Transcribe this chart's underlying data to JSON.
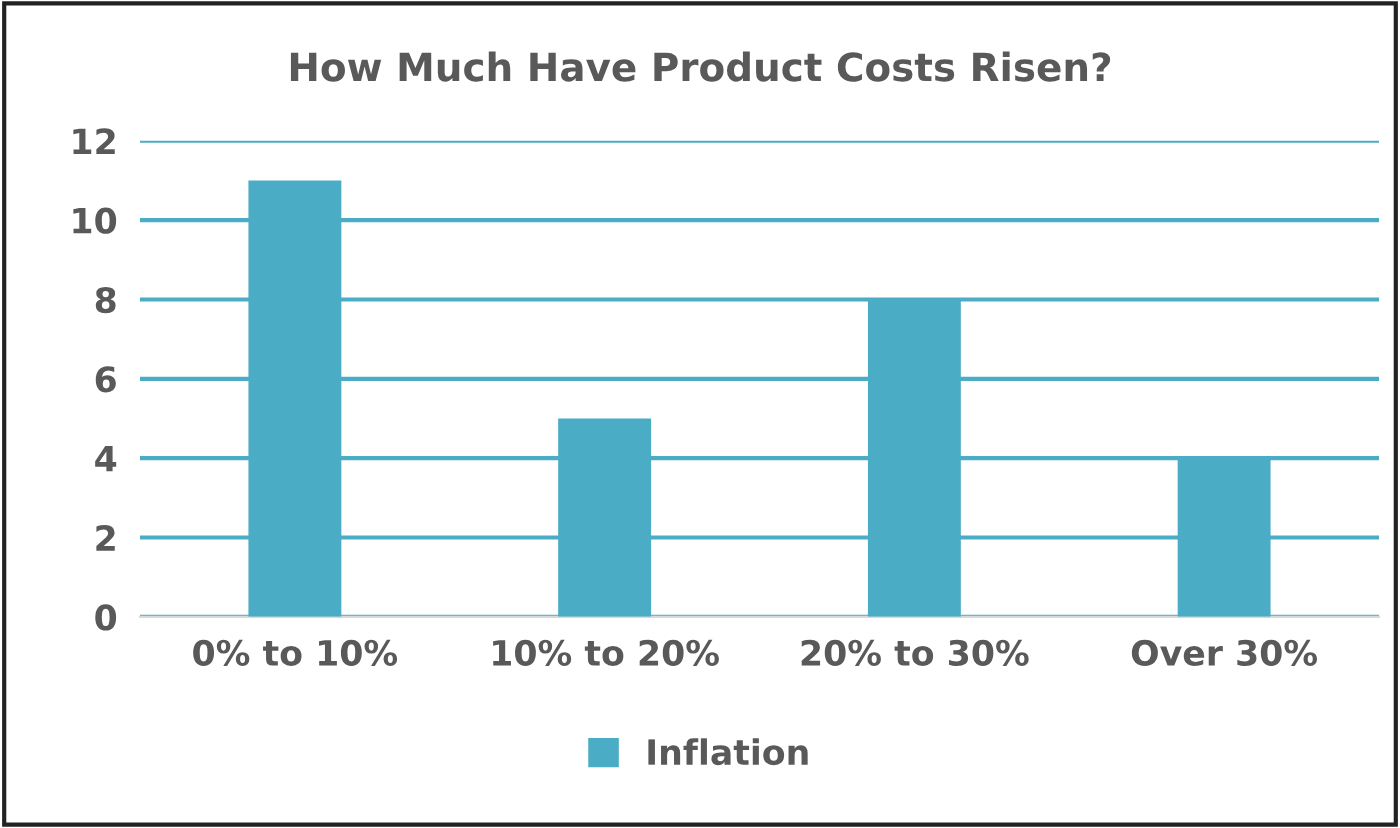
{
  "chart_data": {
    "type": "bar",
    "title": "How Much Have Product Costs Risen?",
    "categories": [
      "0% to 10%",
      "10% to 20%",
      "20% to 30%",
      "Over 30%"
    ],
    "series": [
      {
        "name": "Inflation",
        "color": "#4bacc6",
        "values": [
          11,
          5,
          8,
          4
        ]
      }
    ],
    "ylim": [
      0,
      12
    ],
    "yticks": [
      0,
      2,
      4,
      6,
      8,
      10,
      12
    ],
    "grid": "y",
    "legend": "bottom"
  }
}
